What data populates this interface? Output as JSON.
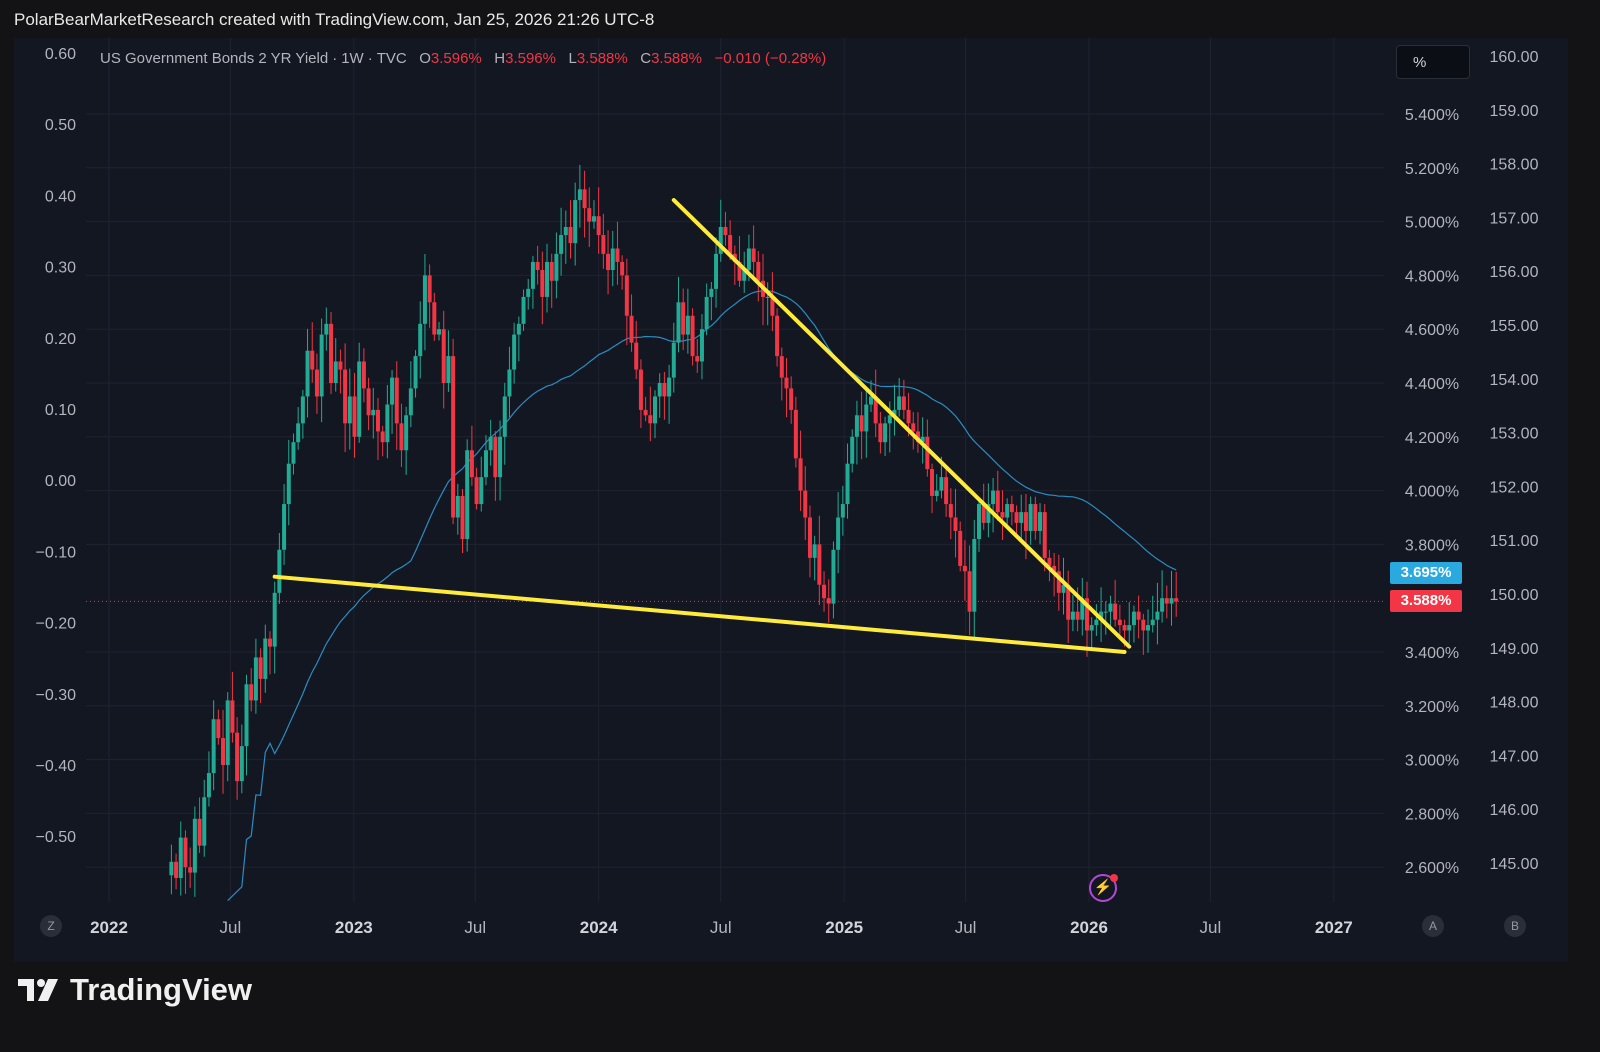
{
  "caption": "PolarBearMarketResearch created with TradingView.com, Jan 25, 2026 21:26 UTC-8",
  "legend": {
    "symbol": "US Government Bonds 2 YR Yield",
    "interval": "1W",
    "source": "TVC",
    "open_label": "O",
    "open": "3.596%",
    "high_label": "H",
    "high": "3.596%",
    "low_label": "L",
    "low": "3.588%",
    "close_label": "C",
    "close": "3.588%",
    "change": "−0.010 (−0.28%)"
  },
  "scale_mode_label": "%",
  "badges": {
    "ma_value": "3.695%",
    "last_value": "3.588%"
  },
  "buttons": {
    "z": "Z",
    "a": "A",
    "b": "B"
  },
  "brand": {
    "name": "TradingView"
  },
  "colors": {
    "up": "#22ab94",
    "down": "#f23645",
    "trendline": "#ffeb3b",
    "ma": "#2b8cc2",
    "background": "#131722"
  },
  "chart_data": {
    "type": "candlestick",
    "series_name": "US Government Bonds 2 YR Yield",
    "interval": "1W",
    "x_ticks": [
      {
        "label": "2022",
        "date": "2022-01-01",
        "bold": true
      },
      {
        "label": "Jul",
        "date": "2022-07-01",
        "bold": false
      },
      {
        "label": "2023",
        "date": "2023-01-01",
        "bold": true
      },
      {
        "label": "Jul",
        "date": "2023-07-01",
        "bold": false
      },
      {
        "label": "2024",
        "date": "2024-01-01",
        "bold": true
      },
      {
        "label": "Jul",
        "date": "2024-07-01",
        "bold": false
      },
      {
        "label": "2025",
        "date": "2025-01-01",
        "bold": true
      },
      {
        "label": "Jul",
        "date": "2025-07-01",
        "bold": false
      },
      {
        "label": "2026",
        "date": "2026-01-01",
        "bold": true
      },
      {
        "label": "Jul",
        "date": "2026-07-01",
        "bold": false
      },
      {
        "label": "2027",
        "date": "2027-01-01",
        "bold": true
      }
    ],
    "right_axis_primary": {
      "labels": [
        "5.400%",
        "5.200%",
        "5.000%",
        "4.800%",
        "4.600%",
        "4.400%",
        "4.200%",
        "4.000%",
        "3.800%",
        "3.400%",
        "3.200%",
        "3.000%",
        "2.800%",
        "2.600%"
      ],
      "values": [
        5.4,
        5.2,
        5.0,
        4.8,
        4.6,
        4.4,
        4.2,
        4.0,
        3.8,
        3.4,
        3.2,
        3.0,
        2.8,
        2.6
      ]
    },
    "right_axis_secondary": {
      "labels": [
        "160.00",
        "159.00",
        "158.00",
        "157.00",
        "156.00",
        "155.00",
        "154.00",
        "153.00",
        "152.00",
        "151.00",
        "150.00",
        "149.00",
        "148.00",
        "147.00",
        "146.00",
        "145.00"
      ]
    },
    "left_axis": {
      "labels": [
        "0.60",
        "0.50",
        "0.40",
        "0.30",
        "0.20",
        "0.10",
        "0.00",
        "−0.10",
        "−0.20",
        "−0.30",
        "−0.40",
        "−0.50"
      ]
    },
    "y_range": [
      2.45,
      5.6
    ],
    "last_price": 3.588,
    "ma_last": 3.695,
    "closes": [
      2.62,
      2.56,
      2.71,
      2.6,
      2.58,
      2.78,
      2.68,
      2.86,
      2.95,
      3.15,
      3.08,
      2.98,
      3.22,
      3.1,
      2.92,
      3.05,
      3.28,
      3.22,
      3.38,
      3.3,
      3.45,
      3.42,
      3.62,
      3.78,
      3.95,
      4.1,
      4.18,
      4.25,
      4.35,
      4.52,
      4.45,
      4.35,
      4.58,
      4.62,
      4.4,
      4.48,
      4.45,
      4.25,
      4.35,
      4.2,
      4.48,
      4.38,
      4.28,
      4.3,
      4.22,
      4.18,
      4.32,
      4.42,
      4.25,
      4.15,
      4.28,
      4.38,
      4.5,
      4.62,
      4.8,
      4.7,
      4.58,
      4.6,
      4.4,
      4.5,
      3.9,
      3.98,
      3.82,
      4.15,
      4.05,
      3.95,
      4.05,
      4.15,
      4.2,
      4.05,
      4.2,
      4.35,
      4.45,
      4.58,
      4.62,
      4.72,
      4.75,
      4.85,
      4.82,
      4.72,
      4.85,
      4.78,
      4.88,
      4.95,
      4.98,
      4.92,
      5.08,
      5.12,
      5.05,
      5.0,
      5.02,
      4.95,
      4.88,
      4.82,
      4.9,
      4.85,
      4.8,
      4.65,
      4.55,
      4.45,
      4.3,
      4.28,
      4.25,
      4.35,
      4.4,
      4.35,
      4.42,
      4.55,
      4.7,
      4.58,
      4.65,
      4.5,
      4.48,
      4.6,
      4.72,
      4.75,
      4.88,
      4.98,
      4.95,
      4.88,
      4.85,
      4.78,
      4.82,
      4.9,
      4.85,
      4.78,
      4.72,
      4.72,
      4.65,
      4.5,
      4.42,
      4.38,
      4.3,
      4.12,
      4.0,
      3.9,
      3.75,
      3.8,
      3.65,
      3.6,
      3.58,
      3.78,
      3.9,
      3.95,
      4.1,
      4.2,
      4.28,
      4.22,
      4.32,
      4.35,
      4.25,
      4.18,
      4.25,
      4.28,
      4.3,
      4.35,
      4.3,
      4.25,
      4.22,
      4.18,
      4.2,
      4.08,
      3.98,
      4.0,
      4.05,
      3.95,
      3.9,
      3.85,
      3.72,
      3.7,
      3.55,
      3.82,
      3.95,
      3.88,
      3.95,
      4.0,
      3.92,
      3.9,
      3.95,
      3.92,
      3.88,
      3.92,
      3.85,
      3.95,
      3.85,
      3.92,
      3.75,
      3.72,
      3.7,
      3.62,
      3.65,
      3.52,
      3.55,
      3.52,
      3.6,
      3.48,
      3.5,
      3.52,
      3.55,
      3.55,
      3.58,
      3.52,
      3.5,
      3.48,
      3.5,
      3.55,
      3.52,
      3.48,
      3.5,
      3.52,
      3.55,
      3.6,
      3.58,
      3.6,
      3.588
    ],
    "trendlines": [
      {
        "name": "upper",
        "from": {
          "date": "2024-04-22",
          "value": 5.08
        },
        "to": {
          "date": "2026-03-02",
          "value": 3.42
        }
      },
      {
        "name": "lower",
        "from": {
          "date": "2022-09-05",
          "value": 3.68
        },
        "to": {
          "date": "2026-02-23",
          "value": 3.4
        }
      }
    ]
  }
}
